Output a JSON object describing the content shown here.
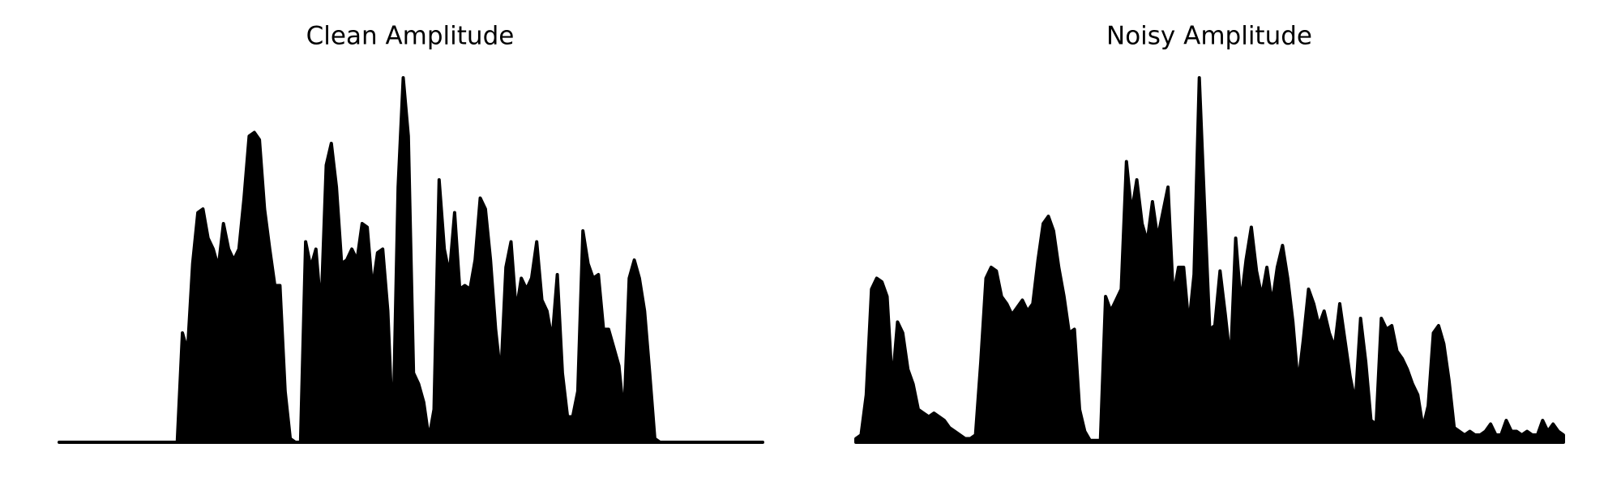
{
  "chart_data": [
    {
      "type": "line",
      "title": "Clean Amplitude",
      "color": "#000000",
      "ylim": [
        0,
        1
      ],
      "values": [
        0,
        0,
        0,
        0,
        0,
        0,
        0,
        0,
        0,
        0,
        0,
        0,
        0,
        0,
        0,
        0,
        0,
        0,
        0,
        0,
        0,
        0,
        0,
        0,
        0.3,
        0.25,
        0.49,
        0.63,
        0.64,
        0.56,
        0.53,
        0.48,
        0.6,
        0.53,
        0.5,
        0.53,
        0.67,
        0.84,
        0.85,
        0.83,
        0.64,
        0.53,
        0.43,
        0.43,
        0.14,
        0.01,
        0,
        0,
        0.55,
        0.48,
        0.53,
        0.36,
        0.76,
        0.82,
        0.7,
        0.49,
        0.5,
        0.53,
        0.5,
        0.6,
        0.59,
        0.42,
        0.52,
        0.53,
        0.36,
        0.02,
        0.7,
        1.0,
        0.84,
        0.19,
        0.16,
        0.11,
        0.01,
        0.09,
        0.72,
        0.53,
        0.46,
        0.63,
        0.42,
        0.43,
        0.42,
        0.5,
        0.67,
        0.64,
        0.5,
        0.31,
        0.18,
        0.48,
        0.55,
        0.36,
        0.45,
        0.42,
        0.45,
        0.55,
        0.39,
        0.36,
        0.28,
        0.46,
        0.19,
        0.07,
        0.07,
        0.14,
        0.58,
        0.49,
        0.45,
        0.46,
        0.31,
        0.31,
        0.26,
        0.21,
        0.07,
        0.45,
        0.5,
        0.45,
        0.36,
        0.19,
        0.01,
        0,
        0,
        0,
        0,
        0,
        0,
        0,
        0,
        0,
        0,
        0,
        0,
        0,
        0,
        0,
        0,
        0,
        0,
        0,
        0,
        0
      ]
    },
    {
      "type": "line",
      "title": "Noisy Amplitude",
      "color": "#000000",
      "ylim": [
        0,
        1
      ],
      "values": [
        0.01,
        0.02,
        0.13,
        0.42,
        0.45,
        0.44,
        0.4,
        0.16,
        0.33,
        0.3,
        0.2,
        0.16,
        0.09,
        0.08,
        0.07,
        0.08,
        0.07,
        0.06,
        0.04,
        0.03,
        0.02,
        0.01,
        0.01,
        0.02,
        0.22,
        0.45,
        0.48,
        0.47,
        0.4,
        0.38,
        0.35,
        0.37,
        0.39,
        0.36,
        0.38,
        0.5,
        0.6,
        0.62,
        0.58,
        0.48,
        0.4,
        0.3,
        0.31,
        0.09,
        0.03,
        0.005,
        0.005,
        0.005,
        0.4,
        0.36,
        0.39,
        0.42,
        0.77,
        0.63,
        0.72,
        0.6,
        0.55,
        0.66,
        0.56,
        0.63,
        0.7,
        0.4,
        0.48,
        0.48,
        0.32,
        0.46,
        1.0,
        0.65,
        0.31,
        0.32,
        0.47,
        0.35,
        0.22,
        0.56,
        0.38,
        0.5,
        0.59,
        0.47,
        0.4,
        0.48,
        0.38,
        0.48,
        0.54,
        0.45,
        0.33,
        0.16,
        0.28,
        0.42,
        0.38,
        0.32,
        0.36,
        0.3,
        0.26,
        0.38,
        0.28,
        0.18,
        0.11,
        0.34,
        0.22,
        0.06,
        0.05,
        0.34,
        0.31,
        0.32,
        0.25,
        0.23,
        0.2,
        0.16,
        0.13,
        0.04,
        0.1,
        0.3,
        0.32,
        0.27,
        0.17,
        0.04,
        0.03,
        0.02,
        0.03,
        0.02,
        0.02,
        0.03,
        0.05,
        0.02,
        0.02,
        0.06,
        0.03,
        0.03,
        0.02,
        0.03,
        0.02,
        0.02,
        0.06,
        0.03,
        0.05,
        0.03,
        0.02
      ]
    }
  ]
}
